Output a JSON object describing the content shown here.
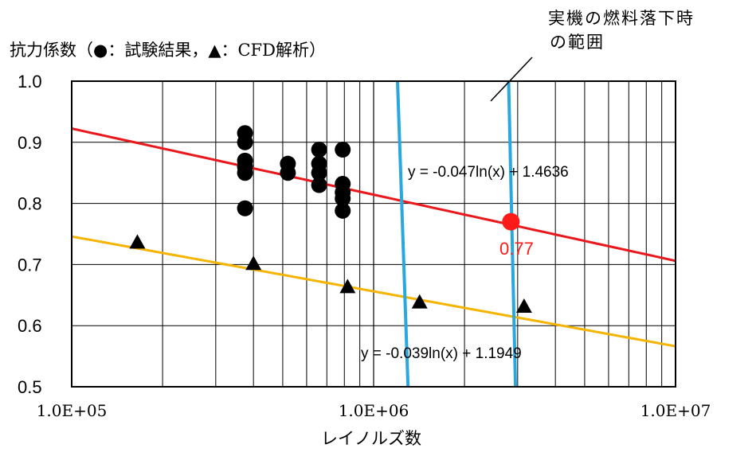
{
  "chart_data": {
    "type": "scatter",
    "title": "",
    "ylabel": "抗力係数（●：試験結果，▲：CFD解析）",
    "xlabel": "レイノルズ数",
    "x_scale": "log",
    "xlim": [
      100000,
      10000000
    ],
    "ylim": [
      0.5,
      1.0
    ],
    "x_tick_labels": [
      "1.0E+05",
      "1.0E+06",
      "1.0E+07"
    ],
    "y_tick_labels": [
      "0.5",
      "0.6",
      "0.7",
      "0.8",
      "0.9",
      "1.0"
    ],
    "grid": true,
    "series": [
      {
        "marker": "circle",
        "color": "#000000",
        "points": [
          [
            375000,
            0.915
          ],
          [
            375000,
            0.9
          ],
          [
            375000,
            0.87
          ],
          [
            375000,
            0.86
          ],
          [
            375000,
            0.85
          ],
          [
            375000,
            0.792
          ],
          [
            520000,
            0.865
          ],
          [
            520000,
            0.85
          ],
          [
            660000,
            0.888
          ],
          [
            660000,
            0.865
          ],
          [
            660000,
            0.85
          ],
          [
            660000,
            0.83
          ],
          [
            790000,
            0.888
          ],
          [
            790000,
            0.832
          ],
          [
            790000,
            0.818
          ],
          [
            790000,
            0.808
          ],
          [
            790000,
            0.788
          ]
        ]
      },
      {
        "marker": "triangle",
        "color": "#000000",
        "points": [
          [
            165000,
            0.735
          ],
          [
            400000,
            0.7
          ],
          [
            820000,
            0.662
          ],
          [
            1420000,
            0.637
          ],
          [
            3150000,
            0.63
          ]
        ]
      }
    ],
    "trendlines": [
      {
        "slope": -0.047,
        "intercept": 1.4636,
        "color": "#e8181c",
        "equation": "y = -0.047ln(x) + 1.4636"
      },
      {
        "slope": -0.039,
        "intercept": 1.1949,
        "color": "#f5b400",
        "equation": "y = -0.039ln(x) + 1.1949"
      }
    ],
    "range_lines": {
      "color": "#29a8e0",
      "lines": [
        {
          "x_top": 1200000,
          "x_bottom": 1300000
        },
        {
          "x_top": 2800000,
          "x_bottom": 2950000
        }
      ],
      "label": [
        "実機の燃料落下時",
        "の範囲"
      ]
    },
    "highlight": {
      "x": 2850000,
      "y": 0.77,
      "label": "0.77",
      "color": "#ff1a1a"
    }
  }
}
